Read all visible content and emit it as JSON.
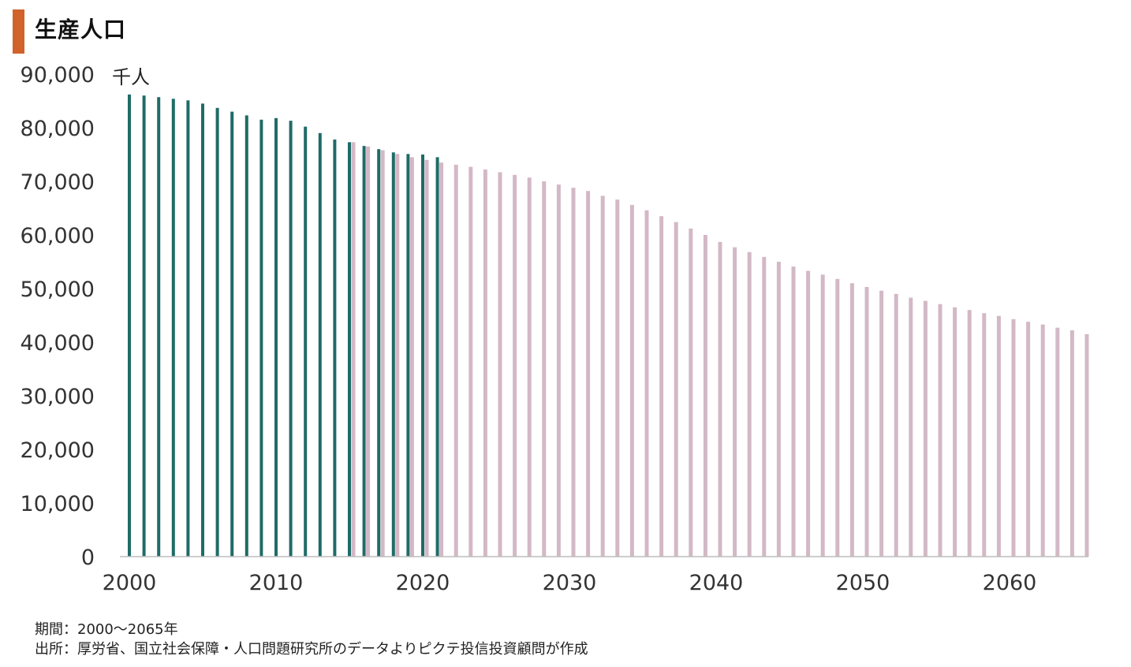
{
  "title": "生産人口",
  "colors": {
    "title_accent": "#d0622a",
    "actual": "#1f6b67",
    "projected": "#d3b8c5"
  },
  "footer": {
    "period": "期間：2000～2065年",
    "source": "出所：厚労省、国立社会保障・人口問題研究所のデータよりピクテ投信投資顧問が作成"
  },
  "chart_data": {
    "type": "bar",
    "unit_label": "千人",
    "ylim": [
      0,
      90000
    ],
    "yticks": [
      "0",
      "10,000",
      "20,000",
      "30,000",
      "40,000",
      "50,000",
      "60,000",
      "70,000",
      "80,000",
      "90,000"
    ],
    "xticks": [
      "2000",
      "2010",
      "2020",
      "2030",
      "2040",
      "2050",
      "2060"
    ],
    "grid": false,
    "series": [
      {
        "years": [
          2000,
          2001,
          2002,
          2003,
          2004,
          2005,
          2006,
          2007,
          2008,
          2009,
          2010,
          2011,
          2012,
          2013,
          2014,
          2015,
          2016,
          2017,
          2018,
          2019,
          2020,
          2021
        ],
        "values": [
          86200,
          86000,
          85700,
          85400,
          85100,
          84500,
          83700,
          83000,
          82300,
          81500,
          81800,
          81300,
          80200,
          79000,
          77800,
          77300,
          76600,
          76000,
          75400,
          75100,
          75000,
          74500
        ]
      },
      {
        "years": [
          2015,
          2016,
          2017,
          2018,
          2019,
          2020,
          2021,
          2022,
          2023,
          2024,
          2025,
          2026,
          2027,
          2028,
          2029,
          2030,
          2031,
          2032,
          2033,
          2034,
          2035,
          2036,
          2037,
          2038,
          2039,
          2040,
          2041,
          2042,
          2043,
          2044,
          2045,
          2046,
          2047,
          2048,
          2049,
          2050,
          2051,
          2052,
          2053,
          2054,
          2055,
          2056,
          2057,
          2058,
          2059,
          2060,
          2061,
          2062,
          2063,
          2064,
          2065
        ],
        "values": [
          77300,
          76500,
          75800,
          75100,
          74500,
          74000,
          73500,
          73100,
          72700,
          72200,
          71700,
          71200,
          70700,
          70000,
          69400,
          68800,
          68200,
          67300,
          66600,
          65600,
          64600,
          63500,
          62400,
          61200,
          60000,
          58700,
          57700,
          56800,
          55900,
          55000,
          54100,
          53300,
          52600,
          51800,
          51000,
          50300,
          49600,
          49000,
          48300,
          47700,
          47100,
          46500,
          46000,
          45400,
          44900,
          44300,
          43800,
          43300,
          42700,
          42200,
          41500
        ]
      }
    ]
  }
}
